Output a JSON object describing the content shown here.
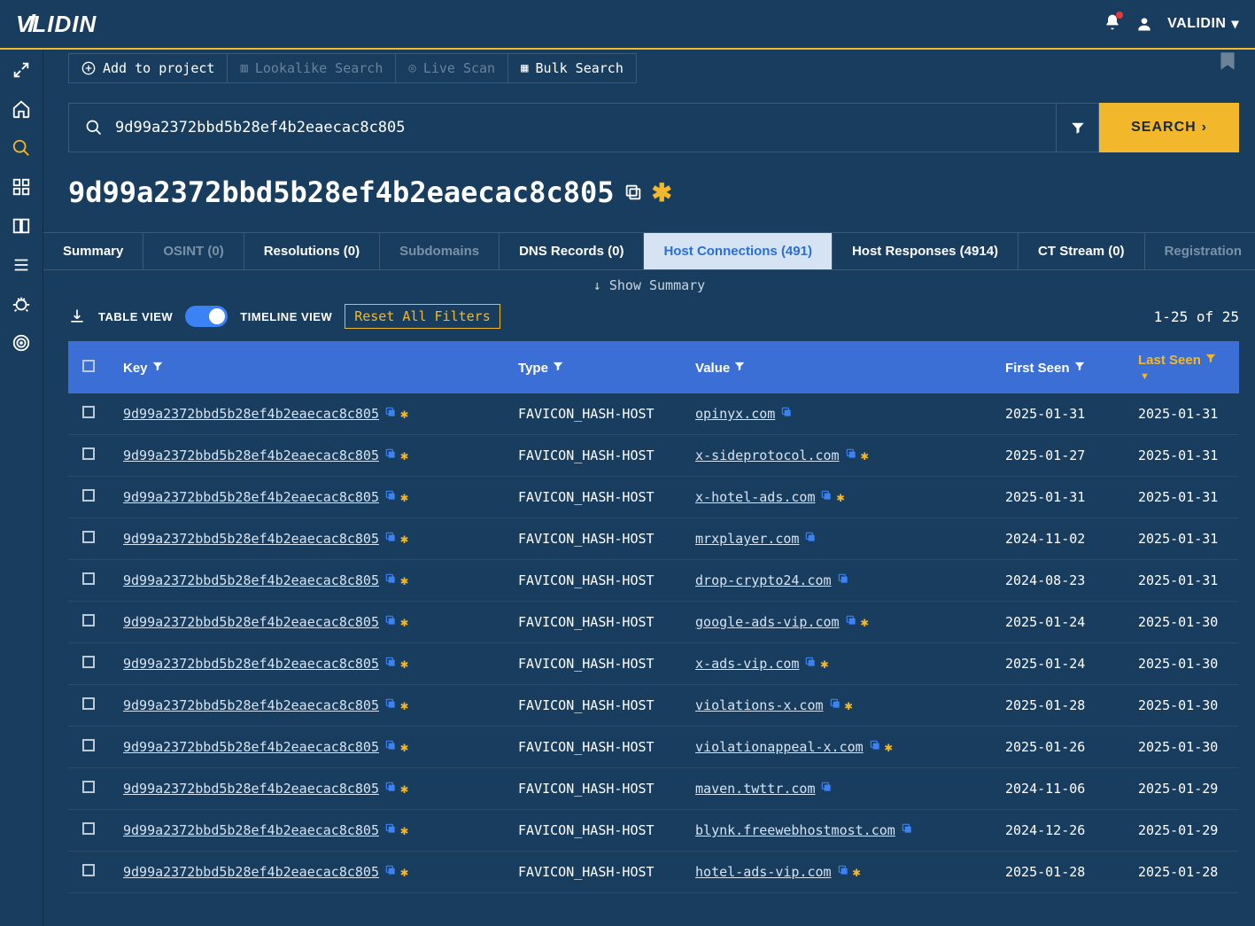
{
  "brand": "VALIDIN",
  "user": "VALIDIN",
  "toolbar": {
    "add": "Add to project",
    "lookalike": "Lookalike Search",
    "live": "Live Scan",
    "bulk": "Bulk Search"
  },
  "search": {
    "value": "9d99a2372bbd5b28ef4b2eaecac8c805",
    "button": "SEARCH"
  },
  "title": "9d99a2372bbd5b28ef4b2eaecac8c805",
  "tabs": [
    {
      "label": "Summary",
      "active": false,
      "dim": false
    },
    {
      "label": "OSINT (0)",
      "active": false,
      "dim": true
    },
    {
      "label": "Resolutions (0)",
      "active": false,
      "dim": false
    },
    {
      "label": "Subdomains",
      "active": false,
      "dim": true
    },
    {
      "label": "DNS Records (0)",
      "active": false,
      "dim": false
    },
    {
      "label": "Host Connections (491)",
      "active": true,
      "dim": false
    },
    {
      "label": "Host Responses (4914)",
      "active": false,
      "dim": false
    },
    {
      "label": "CT Stream (0)",
      "active": false,
      "dim": false
    },
    {
      "label": "Registration",
      "active": false,
      "dim": true
    }
  ],
  "showSummary": "Show Summary",
  "views": {
    "table": "TABLE VIEW",
    "timeline": "TIMELINE VIEW"
  },
  "reset": "Reset All Filters",
  "pager": "1-25 of 25",
  "columns": {
    "key": "Key",
    "type": "Type",
    "value": "Value",
    "first": "First Seen",
    "last": "Last Seen"
  },
  "hashKey": "9d99a2372bbd5b28ef4b2eaecac8c805",
  "typeVal": "FAVICON_HASH-HOST",
  "rows": [
    {
      "value": "opinyx.com",
      "star": false,
      "first": "2025-01-31",
      "last": "2025-01-31"
    },
    {
      "value": "x-sideprotocol.com",
      "star": true,
      "first": "2025-01-27",
      "last": "2025-01-31"
    },
    {
      "value": "x-hotel-ads.com",
      "star": true,
      "first": "2025-01-31",
      "last": "2025-01-31"
    },
    {
      "value": "mrxplayer.com",
      "star": false,
      "first": "2024-11-02",
      "last": "2025-01-31"
    },
    {
      "value": "drop-crypto24.com",
      "star": false,
      "first": "2024-08-23",
      "last": "2025-01-31"
    },
    {
      "value": "google-ads-vip.com",
      "star": true,
      "first": "2025-01-24",
      "last": "2025-01-30"
    },
    {
      "value": "x-ads-vip.com",
      "star": true,
      "first": "2025-01-24",
      "last": "2025-01-30"
    },
    {
      "value": "violations-x.com",
      "star": true,
      "first": "2025-01-28",
      "last": "2025-01-30"
    },
    {
      "value": "violationappeal-x.com",
      "star": true,
      "first": "2025-01-26",
      "last": "2025-01-30"
    },
    {
      "value": "maven.twttr.com",
      "star": false,
      "first": "2024-11-06",
      "last": "2025-01-29"
    },
    {
      "value": "blynk.freewebhostmost.com",
      "star": false,
      "first": "2024-12-26",
      "last": "2025-01-29"
    },
    {
      "value": "hotel-ads-vip.com",
      "star": true,
      "first": "2025-01-28",
      "last": "2025-01-28"
    }
  ],
  "colors": {
    "bg": "#193d5e",
    "accent": "#f3b72b",
    "link": "#3b82f6",
    "header": "#3b6fd6",
    "border": "#3a5a78",
    "textDim": "#7a92a8"
  }
}
